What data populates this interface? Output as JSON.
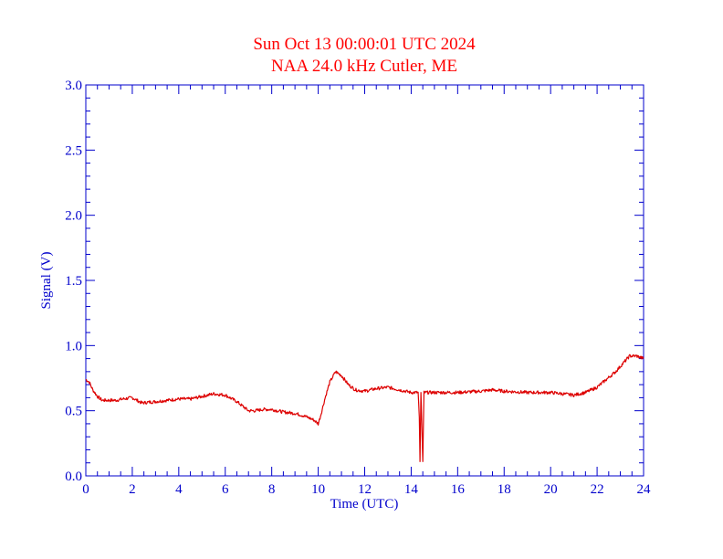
{
  "chart_data": {
    "type": "line",
    "title": "Sun Oct 13 00:00:01 UTC 2024",
    "subtitle": "NAA 24.0 kHz Cutler, ME",
    "xlabel": "Time (UTC)",
    "ylabel": "Signal (V)",
    "xlim": [
      0,
      24
    ],
    "ylim": [
      0,
      3
    ],
    "x_ticks": [
      "0",
      "2",
      "4",
      "6",
      "8",
      "10",
      "12",
      "14",
      "16",
      "18",
      "20",
      "22",
      "24"
    ],
    "y_ticks": [
      "0.0",
      "0.5",
      "1.0",
      "1.5",
      "2.0",
      "2.5",
      "3.0"
    ],
    "grid": false,
    "colors": {
      "title": "#ff0000",
      "axes": "#0000cc",
      "line": "#dd0000"
    },
    "series": [
      {
        "points": [
          [
            0.0,
            0.74
          ],
          [
            0.15,
            0.72
          ],
          [
            0.3,
            0.66
          ],
          [
            0.5,
            0.61
          ],
          [
            0.7,
            0.58
          ],
          [
            1.0,
            0.58
          ],
          [
            1.3,
            0.58
          ],
          [
            1.6,
            0.59
          ],
          [
            2.0,
            0.6
          ],
          [
            2.4,
            0.56
          ],
          [
            3.0,
            0.57
          ],
          [
            3.5,
            0.58
          ],
          [
            4.0,
            0.59
          ],
          [
            4.5,
            0.59
          ],
          [
            5.0,
            0.61
          ],
          [
            5.5,
            0.63
          ],
          [
            6.0,
            0.62
          ],
          [
            6.5,
            0.57
          ],
          [
            7.0,
            0.5
          ],
          [
            7.3,
            0.5
          ],
          [
            7.6,
            0.51
          ],
          [
            8.0,
            0.51
          ],
          [
            8.5,
            0.49
          ],
          [
            9.0,
            0.48
          ],
          [
            9.4,
            0.46
          ],
          [
            9.8,
            0.43
          ],
          [
            10.0,
            0.4
          ],
          [
            10.1,
            0.46
          ],
          [
            10.3,
            0.6
          ],
          [
            10.5,
            0.72
          ],
          [
            10.75,
            0.8
          ],
          [
            11.0,
            0.77
          ],
          [
            11.3,
            0.7
          ],
          [
            11.6,
            0.66
          ],
          [
            12.0,
            0.65
          ],
          [
            12.5,
            0.67
          ],
          [
            13.0,
            0.68
          ],
          [
            13.5,
            0.66
          ],
          [
            14.0,
            0.64
          ],
          [
            14.3,
            0.64
          ],
          [
            14.35,
            0.45
          ],
          [
            14.38,
            0.11
          ],
          [
            14.42,
            0.64
          ],
          [
            14.5,
            0.11
          ],
          [
            14.55,
            0.64
          ],
          [
            15.0,
            0.64
          ],
          [
            16.0,
            0.64
          ],
          [
            17.0,
            0.65
          ],
          [
            17.5,
            0.66
          ],
          [
            18.0,
            0.65
          ],
          [
            19.0,
            0.64
          ],
          [
            20.0,
            0.64
          ],
          [
            20.5,
            0.63
          ],
          [
            21.0,
            0.62
          ],
          [
            21.5,
            0.64
          ],
          [
            22.0,
            0.68
          ],
          [
            22.4,
            0.74
          ],
          [
            22.8,
            0.8
          ],
          [
            23.1,
            0.86
          ],
          [
            23.4,
            0.92
          ],
          [
            23.7,
            0.92
          ],
          [
            24.0,
            0.9
          ]
        ]
      }
    ]
  }
}
